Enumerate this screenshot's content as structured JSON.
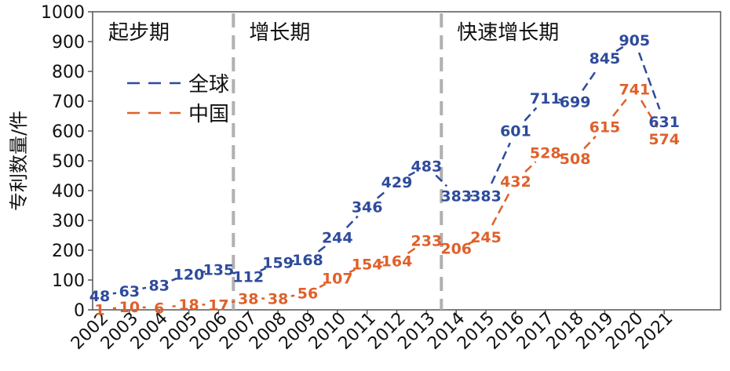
{
  "chart_data": {
    "type": "line",
    "ylabel": "专利数量/件",
    "xlabel": "",
    "ylim": [
      0,
      1000
    ],
    "yticks": [
      "0",
      "100",
      "200",
      "300",
      "400",
      "500",
      "600",
      "700",
      "800",
      "900",
      "1000"
    ],
    "categories": [
      "2002",
      "2003",
      "2004",
      "2005",
      "2006",
      "2007",
      "2008",
      "2009",
      "2010",
      "2011",
      "2012",
      "2013",
      "2014",
      "2015",
      "2016",
      "2017",
      "2018",
      "2019",
      "2020",
      "2021"
    ],
    "series": [
      {
        "name": "全球",
        "color": "#2E4B9B",
        "values": [
          48,
          63,
          83,
          120,
          135,
          112,
          159,
          168,
          244,
          346,
          429,
          483,
          383,
          383,
          601,
          711,
          699,
          845,
          905,
          631
        ]
      },
      {
        "name": "中国",
        "color": "#E0602A",
        "values": [
          1,
          10,
          6,
          18,
          17,
          38,
          38,
          56,
          107,
          154,
          164,
          233,
          206,
          245,
          432,
          528,
          508,
          615,
          741,
          574
        ]
      }
    ],
    "phases": [
      {
        "label": "起步期",
        "start": "2002"
      },
      {
        "label": "增长期",
        "start": "2007"
      },
      {
        "label": "快速增长期",
        "start": "2014"
      }
    ],
    "grid": false,
    "legend_position": "upper-left"
  }
}
